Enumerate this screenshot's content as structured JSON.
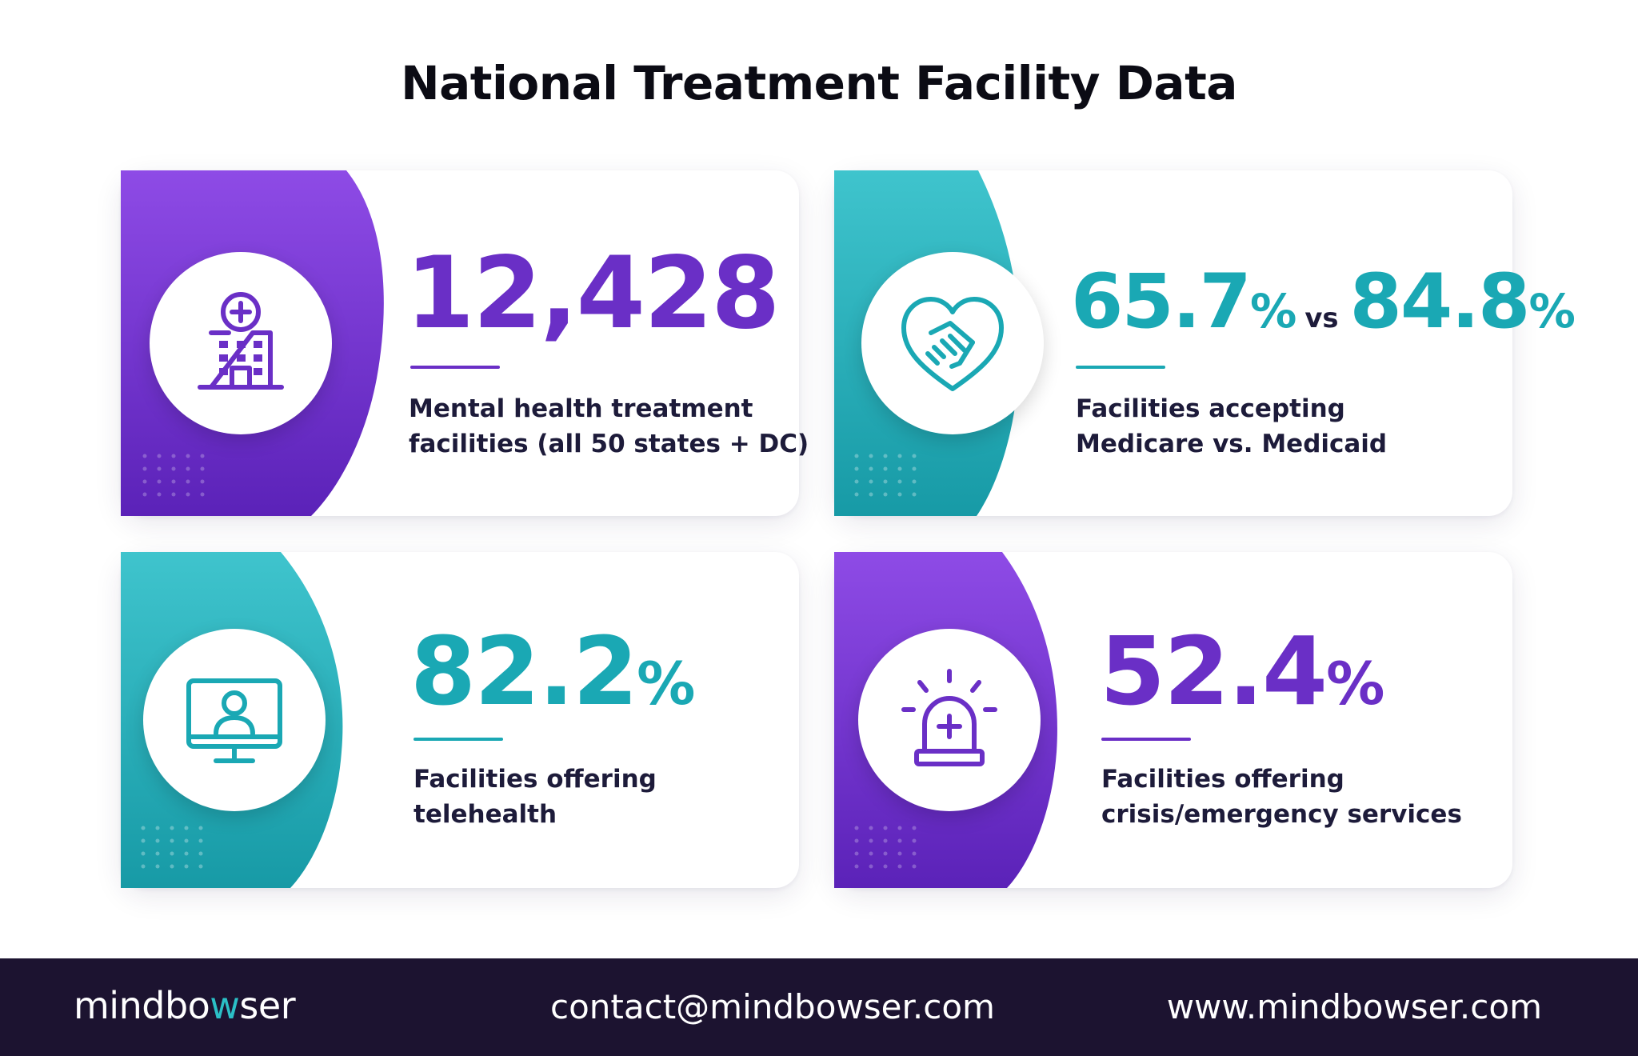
{
  "title": "National Treatment Facility Data",
  "colors": {
    "purple": "#6a2fc6",
    "purple_light": "#8e4be6",
    "teal": "#1aa8b4",
    "teal_light": "#3fc4cd",
    "footer_bg": "#1c1330"
  },
  "cards": [
    {
      "value": "12,428",
      "label_line1": "Mental health treatment",
      "label_line2": "facilities (all 50 states + DC)",
      "icon": "hospital-icon",
      "theme": "purple"
    },
    {
      "value_a": "65.7",
      "value_a_unit": "%",
      "vs": "vs",
      "value_b": "84.8",
      "value_b_unit": "%",
      "label_line1": "Facilities accepting",
      "label_line2": "Medicare vs. Medicaid",
      "icon": "handshake-heart-icon",
      "theme": "teal"
    },
    {
      "value": "82.2",
      "value_unit": "%",
      "label_line1": "Facilities offering",
      "label_line2": "telehealth",
      "icon": "telehealth-monitor-icon",
      "theme": "teal"
    },
    {
      "value": "52.4",
      "value_unit": "%",
      "label_line1": "Facilities offering",
      "label_line2": "crisis/emergency services",
      "icon": "emergency-siren-icon",
      "theme": "purple"
    }
  ],
  "footer": {
    "logo_prefix": "mindbo",
    "logo_highlight": "w",
    "logo_suffix": "ser",
    "email": "contact@mindbowser.com",
    "website": "www.mindbowser.com"
  }
}
